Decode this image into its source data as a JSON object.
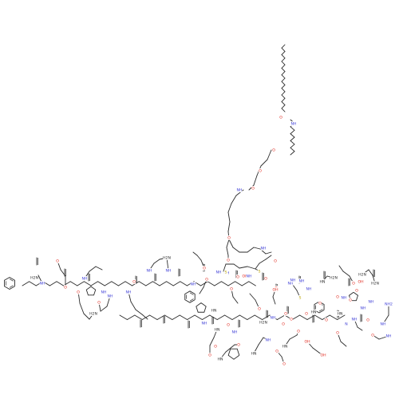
{
  "diagram": {
    "type": "chemical-structure",
    "background": "#ffffff",
    "colors": {
      "bond": "#2b2b2b",
      "N": "#3b3bd6",
      "O": "#e0261b",
      "S": "#b8a100",
      "C": "#2b2b2b"
    },
    "atom_labels": [
      {
        "text": "O"
      },
      {
        "text": "NH"
      },
      {
        "text": "O"
      },
      {
        "text": "O"
      },
      {
        "text": "O"
      },
      {
        "text": "NH"
      },
      {
        "text": "O"
      },
      {
        "text": "O"
      },
      {
        "text": "O"
      },
      {
        "text": "NH"
      },
      {
        "text": "O"
      },
      {
        "text": "NH"
      },
      {
        "text": "NH"
      },
      {
        "text": "NH"
      },
      {
        "text": "O"
      },
      {
        "text": "O"
      },
      {
        "text": "S"
      },
      {
        "text": "S"
      },
      {
        "text": "H2N"
      },
      {
        "text": "NH"
      },
      {
        "text": "NH"
      },
      {
        "text": "NH"
      },
      {
        "text": "O"
      },
      {
        "text": "NH"
      },
      {
        "text": "O"
      },
      {
        "text": "H2N"
      },
      {
        "text": "NH"
      },
      {
        "text": "O"
      },
      {
        "text": "NH"
      },
      {
        "text": "O"
      },
      {
        "text": "H2N"
      },
      {
        "text": "NH"
      },
      {
        "text": "O"
      },
      {
        "text": "OH"
      },
      {
        "text": "NH"
      },
      {
        "text": "O"
      },
      {
        "text": "O"
      },
      {
        "text": "NH"
      },
      {
        "text": "O"
      },
      {
        "text": "HN"
      },
      {
        "text": "O"
      },
      {
        "text": "NH"
      },
      {
        "text": "O"
      },
      {
        "text": "HN"
      },
      {
        "text": "O"
      },
      {
        "text": "HN"
      },
      {
        "text": "NH"
      },
      {
        "text": "O"
      },
      {
        "text": "HN"
      },
      {
        "text": "O"
      },
      {
        "text": "H2N"
      },
      {
        "text": "NH"
      },
      {
        "text": "O"
      },
      {
        "text": "HN"
      },
      {
        "text": "O"
      },
      {
        "text": "O"
      },
      {
        "text": "OH"
      },
      {
        "text": "NH"
      },
      {
        "text": "O"
      },
      {
        "text": "NH"
      },
      {
        "text": "O"
      },
      {
        "text": "S"
      },
      {
        "text": "NH"
      },
      {
        "text": "O"
      },
      {
        "text": "O"
      },
      {
        "text": "NH"
      },
      {
        "text": "HN"
      },
      {
        "text": "O"
      },
      {
        "text": "HN"
      },
      {
        "text": "O"
      },
      {
        "text": "OH"
      },
      {
        "text": "OH"
      },
      {
        "text": "O"
      },
      {
        "text": "HN"
      },
      {
        "text": "O"
      },
      {
        "text": "NH"
      },
      {
        "text": "O"
      },
      {
        "text": "NH"
      },
      {
        "text": "N"
      },
      {
        "text": "NH"
      },
      {
        "text": "O"
      },
      {
        "text": "H2N"
      },
      {
        "text": "OH"
      },
      {
        "text": "O"
      },
      {
        "text": "NH"
      },
      {
        "text": "H2N"
      },
      {
        "text": "O"
      },
      {
        "text": "NH"
      },
      {
        "text": "NH"
      },
      {
        "text": "NH2"
      },
      {
        "text": "H2N"
      },
      {
        "text": "O"
      }
    ]
  }
}
